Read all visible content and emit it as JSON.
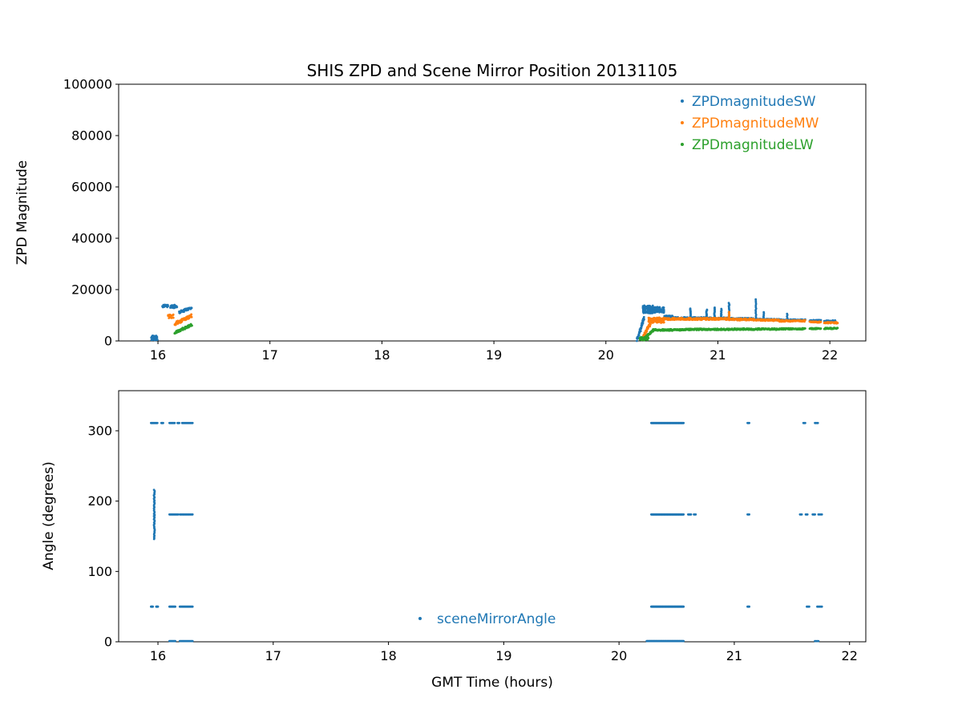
{
  "figure": {
    "title": "SHIS ZPD and Scene Mirror Position 20131105",
    "background": "#ffffff",
    "text_color": "#000000"
  },
  "colors": {
    "blue": "#1f77b4",
    "orange": "#ff7f0e",
    "green": "#2ca02c"
  },
  "chart_data": [
    {
      "type": "scatter",
      "title": "SHIS ZPD and Scene Mirror Position 20131105",
      "xlabel": "",
      "ylabel": "ZPD Magnitude",
      "xlim": [
        15.649,
        22.321
      ],
      "ylim": [
        0,
        100000
      ],
      "xticks": [
        16,
        17,
        18,
        19,
        20,
        21,
        22
      ],
      "yticks": [
        0,
        20000,
        40000,
        60000,
        80000,
        100000
      ],
      "grid": false,
      "legend_position": "upper right",
      "series": [
        {
          "name": "ZPDmagnitudeSW",
          "color": "#1f77b4",
          "segments": [
            {
              "kind": "blob",
              "x0": 15.94,
              "x1": 16.0,
              "y0": 300,
              "y1": 2300,
              "n": 28
            },
            {
              "kind": "h",
              "x0": 16.04,
              "x1": 16.09,
              "y": 13600,
              "jy": 500,
              "n": 22
            },
            {
              "kind": "h",
              "x0": 16.11,
              "x1": 16.17,
              "y": 13400,
              "jy": 600,
              "n": 30
            },
            {
              "kind": "ramp",
              "x0": 16.19,
              "x1": 16.3,
              "y0": 11200,
              "y1": 12900,
              "jy": 500,
              "n": 45
            },
            {
              "kind": "ramp",
              "x0": 20.28,
              "x1": 20.34,
              "y0": 300,
              "y1": 8800,
              "jy": 600,
              "n": 45
            },
            {
              "kind": "blob",
              "x0": 20.33,
              "x1": 20.42,
              "y0": 10800,
              "y1": 13800,
              "n": 130
            },
            {
              "kind": "blob",
              "x0": 20.42,
              "x1": 20.52,
              "y0": 11000,
              "y1": 13200,
              "n": 90
            },
            {
              "kind": "h",
              "x0": 20.52,
              "x1": 20.6,
              "y": 9300,
              "jy": 600,
              "n": 35
            },
            {
              "kind": "h",
              "x0": 20.6,
              "x1": 20.9,
              "y": 8900,
              "jy": 350,
              "n": 110
            },
            {
              "kind": "v",
              "x": 20.755,
              "y0": 8800,
              "y1": 12600,
              "n": 14,
              "jx": 0.003
            },
            {
              "kind": "v",
              "x": 20.9,
              "y0": 8800,
              "y1": 12200,
              "n": 12,
              "jx": 0.003
            },
            {
              "kind": "v",
              "x": 20.97,
              "y0": 8800,
              "y1": 13000,
              "n": 14,
              "jx": 0.003
            },
            {
              "kind": "v",
              "x": 21.03,
              "y0": 8800,
              "y1": 12500,
              "n": 12,
              "jx": 0.003
            },
            {
              "kind": "h",
              "x0": 20.9,
              "x1": 21.1,
              "y": 8800,
              "jy": 350,
              "n": 80
            },
            {
              "kind": "v",
              "x": 21.1,
              "y0": 8700,
              "y1": 14800,
              "n": 16,
              "jx": 0.003
            },
            {
              "kind": "h",
              "x0": 21.1,
              "x1": 21.32,
              "y": 8600,
              "jy": 350,
              "n": 80
            },
            {
              "kind": "v",
              "x": 21.34,
              "y0": 8400,
              "y1": 16200,
              "n": 14,
              "jx": 0.003
            },
            {
              "kind": "h",
              "x0": 21.32,
              "x1": 21.55,
              "y": 8300,
              "jy": 300,
              "n": 80
            },
            {
              "kind": "v",
              "x": 21.41,
              "y0": 8200,
              "y1": 11200,
              "n": 8,
              "jx": 0.003
            },
            {
              "kind": "h",
              "x0": 21.55,
              "x1": 21.78,
              "y": 8100,
              "jy": 300,
              "n": 70
            },
            {
              "kind": "v",
              "x": 21.62,
              "y0": 8000,
              "y1": 10600,
              "n": 6,
              "jx": 0.003
            },
            {
              "kind": "h",
              "x0": 21.82,
              "x1": 21.92,
              "y": 7900,
              "jy": 300,
              "n": 30
            },
            {
              "kind": "h",
              "x0": 21.95,
              "x1": 22.05,
              "y": 7700,
              "jy": 300,
              "n": 30
            }
          ]
        },
        {
          "name": "ZPDmagnitudeMW",
          "color": "#ff7f0e",
          "segments": [
            {
              "kind": "blob",
              "x0": 16.09,
              "x1": 16.14,
              "y0": 8800,
              "y1": 10300,
              "n": 20
            },
            {
              "kind": "ramp",
              "x0": 16.15,
              "x1": 16.3,
              "y0": 6600,
              "y1": 9900,
              "jy": 600,
              "n": 70
            },
            {
              "kind": "ramp",
              "x0": 20.32,
              "x1": 20.4,
              "y0": 500,
              "y1": 7000,
              "jy": 500,
              "n": 50
            },
            {
              "kind": "blob",
              "x0": 20.38,
              "x1": 20.52,
              "y0": 7000,
              "y1": 9200,
              "n": 90
            },
            {
              "kind": "h",
              "x0": 20.52,
              "x1": 20.9,
              "y": 8600,
              "jy": 400,
              "n": 140
            },
            {
              "kind": "h",
              "x0": 20.9,
              "x1": 21.1,
              "y": 8600,
              "jy": 400,
              "n": 75
            },
            {
              "kind": "v",
              "x": 21.1,
              "y0": 8500,
              "y1": 11300,
              "n": 10,
              "jx": 0.003
            },
            {
              "kind": "h",
              "x0": 21.1,
              "x1": 21.32,
              "y": 8400,
              "jy": 350,
              "n": 75
            },
            {
              "kind": "h",
              "x0": 21.32,
              "x1": 21.55,
              "y": 8100,
              "jy": 300,
              "n": 75
            },
            {
              "kind": "h",
              "x0": 21.55,
              "x1": 21.78,
              "y": 7800,
              "jy": 300,
              "n": 70
            },
            {
              "kind": "h",
              "x0": 21.82,
              "x1": 21.92,
              "y": 7400,
              "jy": 300,
              "n": 30
            },
            {
              "kind": "h",
              "x0": 21.95,
              "x1": 22.07,
              "y": 7100,
              "jy": 300,
              "n": 35
            }
          ]
        },
        {
          "name": "ZPDmagnitudeLW",
          "color": "#2ca02c",
          "segments": [
            {
              "kind": "ramp",
              "x0": 16.15,
              "x1": 16.3,
              "y0": 3200,
              "y1": 6300,
              "jy": 400,
              "n": 70
            },
            {
              "kind": "blob",
              "x0": 20.3,
              "x1": 20.38,
              "y0": 200,
              "y1": 1500,
              "n": 30
            },
            {
              "kind": "ramp",
              "x0": 20.33,
              "x1": 20.42,
              "y0": 500,
              "y1": 3900,
              "jy": 300,
              "n": 45
            },
            {
              "kind": "h",
              "x0": 20.42,
              "x1": 20.7,
              "y": 4300,
              "jy": 300,
              "n": 100
            },
            {
              "kind": "h",
              "x0": 20.7,
              "x1": 21.1,
              "y": 4500,
              "jy": 300,
              "n": 140
            },
            {
              "kind": "h",
              "x0": 21.1,
              "x1": 21.55,
              "y": 4600,
              "jy": 300,
              "n": 150
            },
            {
              "kind": "h",
              "x0": 21.55,
              "x1": 21.78,
              "y": 4700,
              "jy": 250,
              "n": 75
            },
            {
              "kind": "h",
              "x0": 21.82,
              "x1": 21.92,
              "y": 4800,
              "jy": 250,
              "n": 30
            },
            {
              "kind": "h",
              "x0": 21.95,
              "x1": 22.07,
              "y": 4900,
              "jy": 250,
              "n": 35
            }
          ]
        }
      ]
    },
    {
      "type": "scatter",
      "title": "",
      "xlabel": "GMT Time (hours)",
      "ylabel": "Angle (degrees)",
      "xlim": [
        15.659,
        22.141
      ],
      "ylim": [
        0,
        357
      ],
      "xticks": [
        16,
        17,
        18,
        19,
        20,
        21,
        22
      ],
      "yticks": [
        0,
        100,
        200,
        300
      ],
      "grid": false,
      "legend_position": "lower center inside",
      "series": [
        {
          "name": "sceneMirrorAngle",
          "color": "#1f77b4",
          "segments": [
            {
              "kind": "h",
              "x0": 15.94,
              "x1": 15.995,
              "y": 311,
              "n": 10
            },
            {
              "kind": "h",
              "x0": 16.03,
              "x1": 16.045,
              "y": 311,
              "n": 4
            },
            {
              "kind": "h",
              "x0": 16.1,
              "x1": 16.145,
              "y": 311,
              "n": 8
            },
            {
              "kind": "h",
              "x0": 16.17,
              "x1": 16.185,
              "y": 311,
              "n": 4
            },
            {
              "kind": "h",
              "x0": 16.21,
              "x1": 16.3,
              "y": 311,
              "n": 14
            },
            {
              "kind": "v",
              "x": 15.968,
              "y0": 146,
              "y1": 216,
              "n": 46,
              "jx": 0.004
            },
            {
              "kind": "h",
              "x0": 16.1,
              "x1": 16.175,
              "y": 181,
              "n": 13
            },
            {
              "kind": "h",
              "x0": 16.19,
              "x1": 16.3,
              "y": 181,
              "n": 18
            },
            {
              "kind": "h",
              "x0": 15.94,
              "x1": 15.955,
              "y": 50,
              "n": 4
            },
            {
              "kind": "h",
              "x0": 15.985,
              "x1": 16.0,
              "y": 50,
              "n": 4
            },
            {
              "kind": "h",
              "x0": 16.1,
              "x1": 16.15,
              "y": 50,
              "n": 9
            },
            {
              "kind": "h",
              "x0": 16.19,
              "x1": 16.3,
              "y": 50,
              "n": 16
            },
            {
              "kind": "h",
              "x0": 16.1,
              "x1": 16.15,
              "y": 1,
              "n": 9
            },
            {
              "kind": "h",
              "x0": 16.19,
              "x1": 16.3,
              "y": 1,
              "n": 16
            },
            {
              "kind": "h",
              "x0": 20.28,
              "x1": 20.56,
              "y": 311,
              "n": 70
            },
            {
              "kind": "h",
              "x0": 20.28,
              "x1": 20.56,
              "y": 181,
              "n": 70
            },
            {
              "kind": "h",
              "x0": 20.6,
              "x1": 20.625,
              "y": 181,
              "n": 5
            },
            {
              "kind": "h",
              "x0": 20.65,
              "x1": 20.665,
              "y": 181,
              "n": 3
            },
            {
              "kind": "h",
              "x0": 20.28,
              "x1": 20.56,
              "y": 50,
              "n": 60
            },
            {
              "kind": "h",
              "x0": 20.24,
              "x1": 20.56,
              "y": 1,
              "n": 75
            },
            {
              "kind": "h",
              "x0": 21.115,
              "x1": 21.13,
              "y": 311,
              "n": 3
            },
            {
              "kind": "h",
              "x0": 21.6,
              "x1": 21.615,
              "y": 311,
              "n": 3
            },
            {
              "kind": "h",
              "x0": 21.7,
              "x1": 21.725,
              "y": 311,
              "n": 4
            },
            {
              "kind": "h",
              "x0": 21.115,
              "x1": 21.13,
              "y": 181,
              "n": 3
            },
            {
              "kind": "h",
              "x0": 21.57,
              "x1": 21.585,
              "y": 181,
              "n": 3
            },
            {
              "kind": "h",
              "x0": 21.62,
              "x1": 21.635,
              "y": 181,
              "n": 3
            },
            {
              "kind": "h",
              "x0": 21.68,
              "x1": 21.7,
              "y": 181,
              "n": 4
            },
            {
              "kind": "h",
              "x0": 21.73,
              "x1": 21.76,
              "y": 181,
              "n": 4
            },
            {
              "kind": "h",
              "x0": 21.115,
              "x1": 21.13,
              "y": 50,
              "n": 3
            },
            {
              "kind": "h",
              "x0": 21.63,
              "x1": 21.65,
              "y": 50,
              "n": 3
            },
            {
              "kind": "h",
              "x0": 21.72,
              "x1": 21.76,
              "y": 50,
              "n": 5
            },
            {
              "kind": "h",
              "x0": 21.7,
              "x1": 21.73,
              "y": 1,
              "n": 4
            }
          ]
        }
      ]
    }
  ]
}
